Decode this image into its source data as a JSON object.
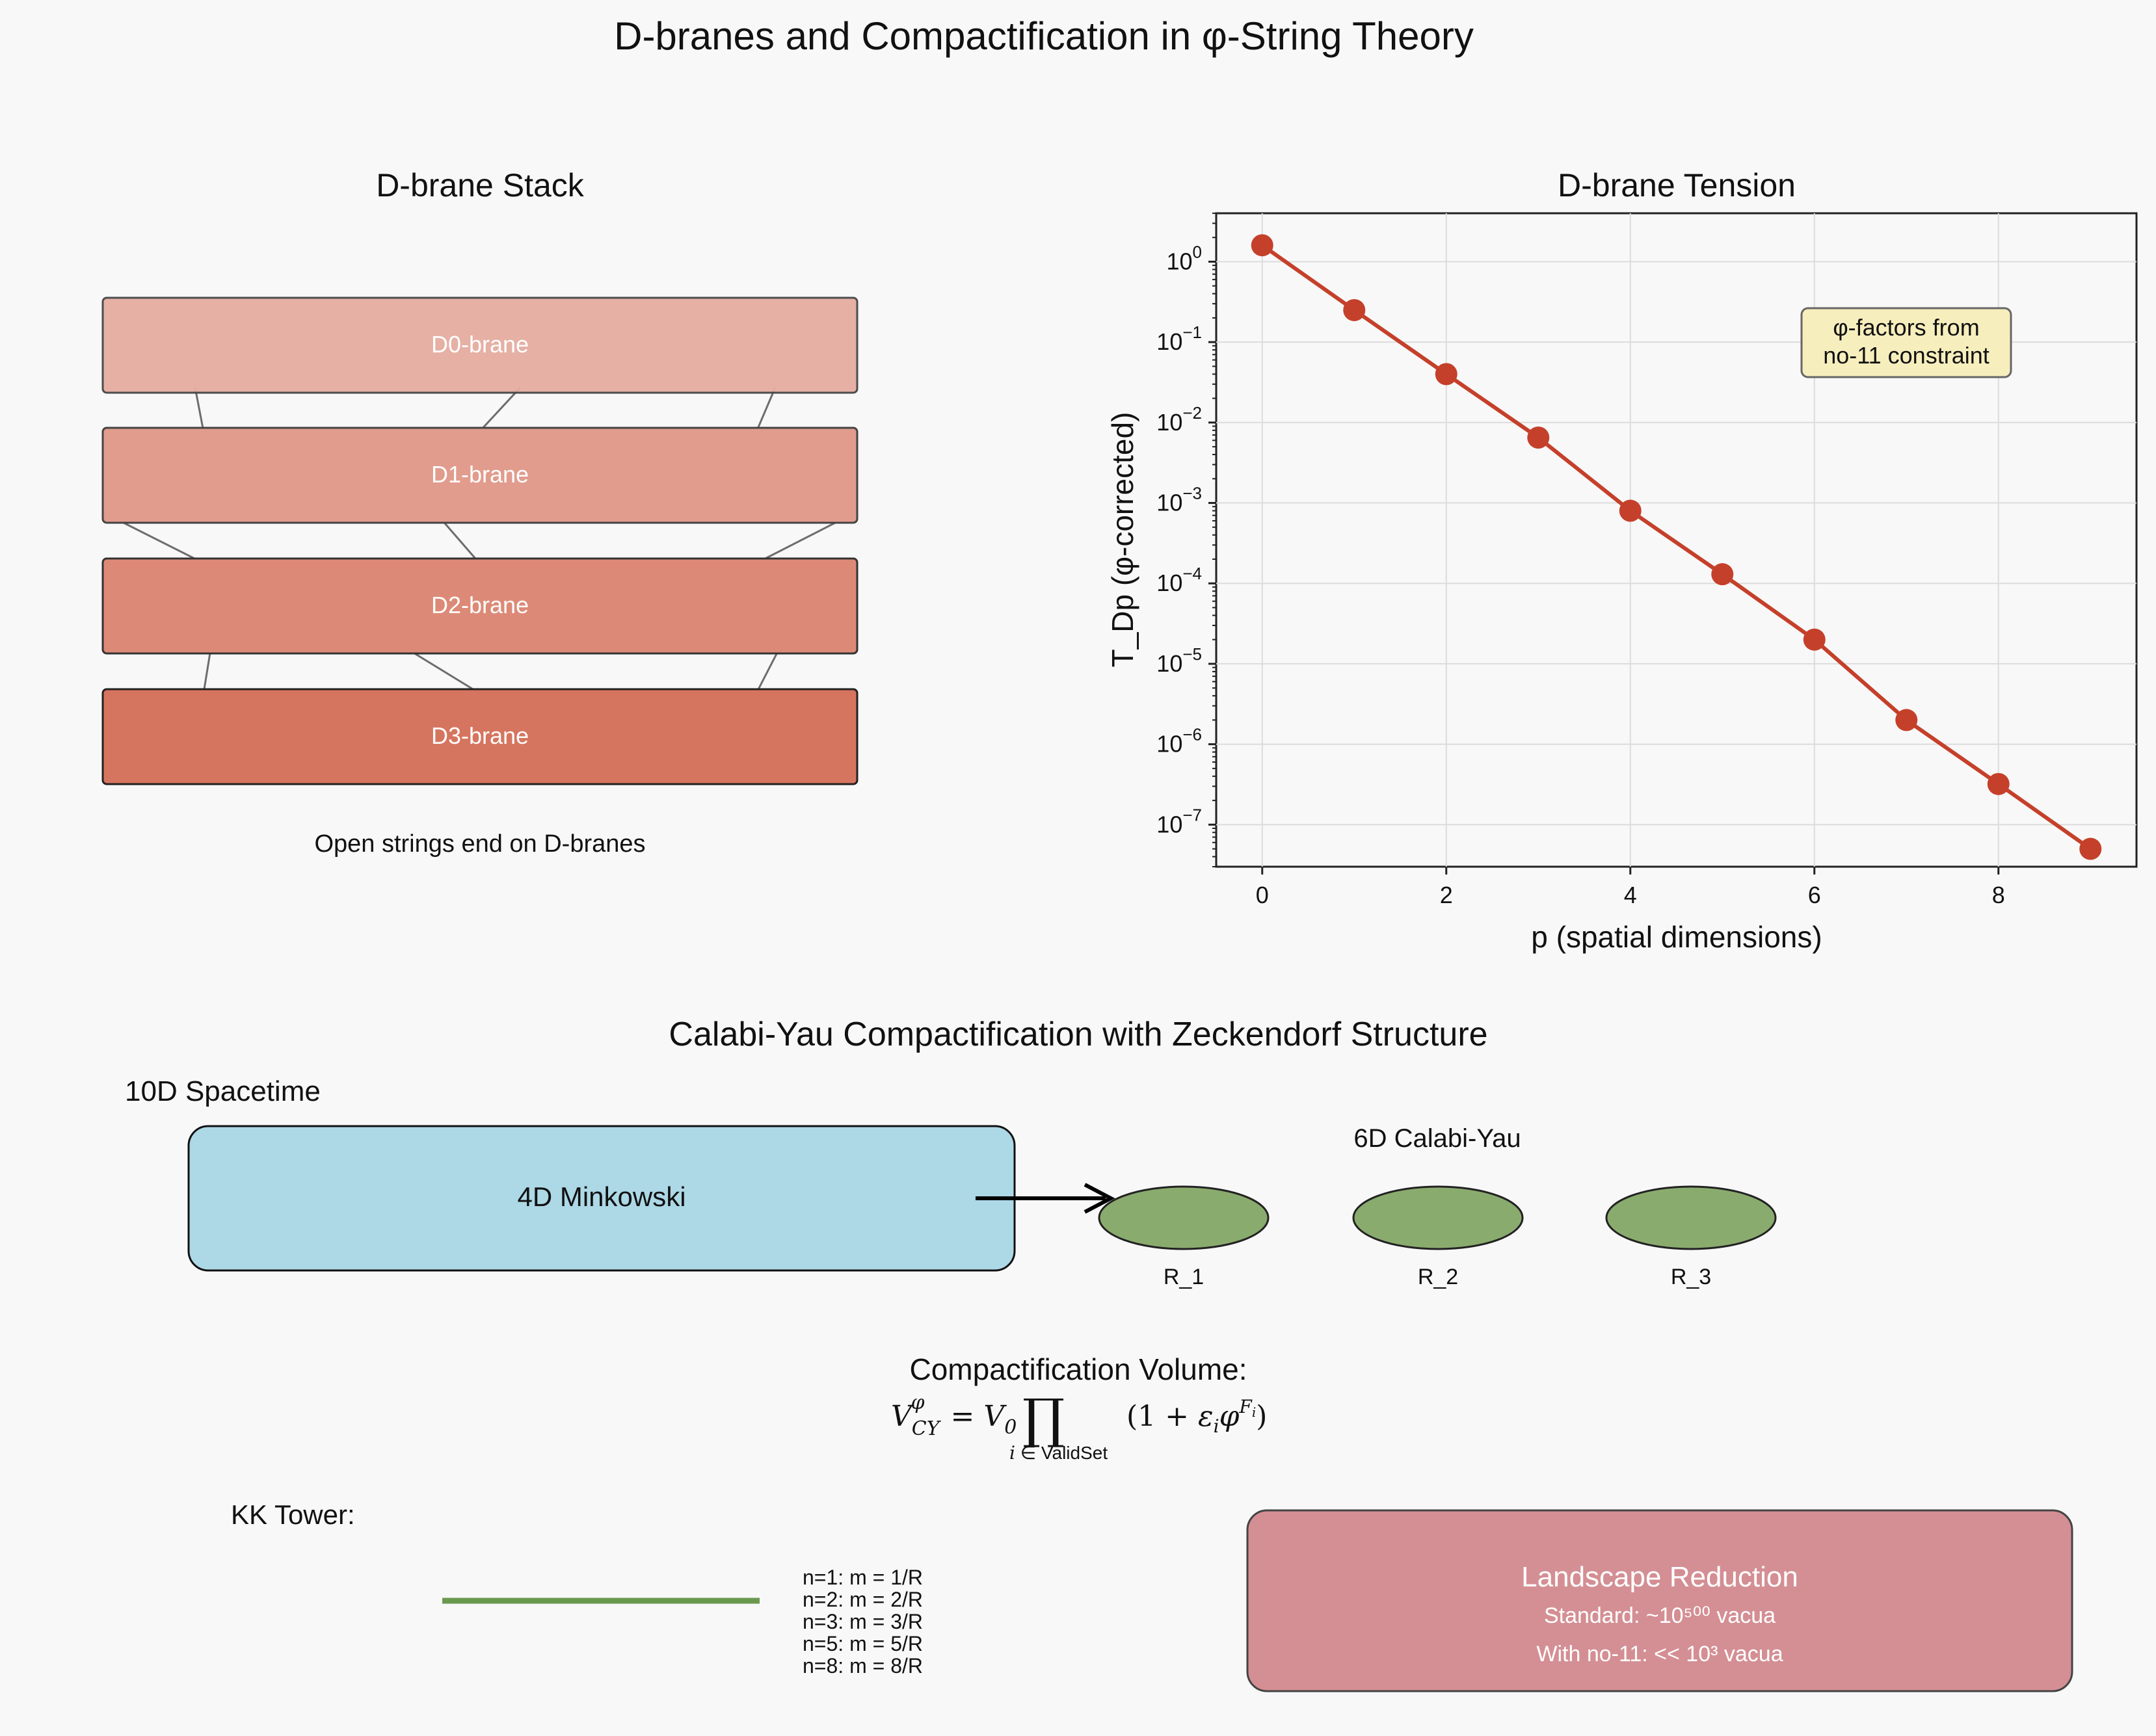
{
  "title": "D-branes and Compactification in φ-String Theory",
  "brane_stack": {
    "title": "D-brane Stack",
    "branes": [
      {
        "label": "D0-brane",
        "color": "#e6ada1"
      },
      {
        "label": "D1-brane",
        "color": "#e19c8d"
      },
      {
        "label": "D2-brane",
        "color": "#dc8a77"
      },
      {
        "label": "D3-brane",
        "color": "#d6755f"
      }
    ],
    "caption": "Open strings end on D-branes"
  },
  "chart_data": {
    "type": "line",
    "title": "D-brane Tension",
    "xlabel": "p (spatial dimensions)",
    "ylabel": "T_Dp (φ-corrected)",
    "yscale": "log",
    "x": [
      0,
      1,
      2,
      3,
      4,
      5,
      6,
      7,
      8,
      9
    ],
    "values": [
      1.6,
      0.25,
      0.04,
      0.0065,
      0.0008,
      0.00013,
      2e-05,
      2e-06,
      3.2e-07,
      5e-08
    ],
    "xlim": [
      -0.5,
      9.5
    ],
    "ylim": [
      3e-08,
      4
    ],
    "xticks": [
      "0",
      "2",
      "4",
      "6",
      "8"
    ],
    "ytick_exponents": [
      "0",
      "−1",
      "−2",
      "−3",
      "−4",
      "−5",
      "−6",
      "−7"
    ],
    "ytick_base": "10",
    "grid": true,
    "color": "#c5402a",
    "annotation": [
      "φ-factors from",
      "no-11 constraint"
    ]
  },
  "compactification": {
    "title": "Calabi-Yau Compactification with Zeckendorf Structure",
    "spacetime_label": "10D Spacetime",
    "minkowski_label": "4D Minkowski",
    "cy_label": "6D Calabi-Yau",
    "radii": [
      "R_1",
      "R_2",
      "R_3"
    ],
    "cy_color": "#8aab6e",
    "minkowski_color": "#add8e6",
    "volume_heading": "Compactification Volume:",
    "kk_heading": "KK Tower:",
    "kk_levels": [
      "n=1: m = 1/R",
      "n=2: m = 2/R",
      "n=3: m = 3/R",
      "n=5: m = 5/R",
      "n=8: m = 8/R"
    ],
    "landscape": {
      "title": "Landscape Reduction",
      "line1": "Standard: ~10⁵⁰⁰ vacua",
      "line2": "With no-11: << 10³ vacua",
      "color": "#d48f94"
    }
  }
}
